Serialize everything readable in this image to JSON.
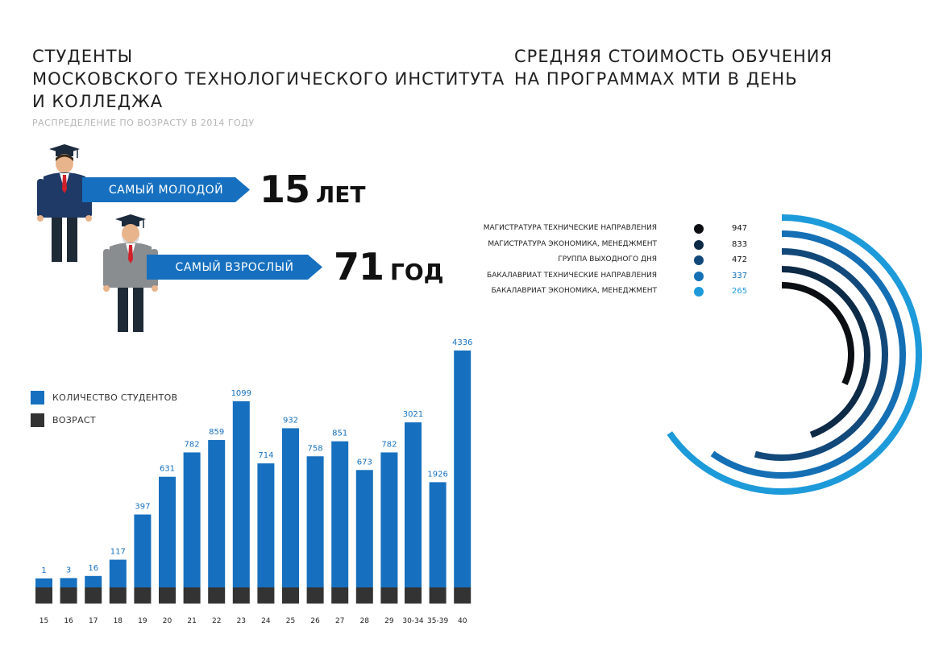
{
  "left": {
    "title_lines": [
      "СТУДЕНТЫ",
      "МОСКОВСКОГО ТЕХНОЛОГИЧЕСКОГО ИНСТИТУТА",
      "И КОЛЛЕДЖА"
    ],
    "subtitle": "РАСПРЕДЕЛЕНИЕ ПО ВОЗРАСТУ В 2014 ГОДУ",
    "youngest": {
      "label": "САМЫЙ МОЛОДОЙ",
      "number": "15",
      "unit": "ЛЕТ"
    },
    "oldest": {
      "label": "САМЫЙ ВЗРОСЛЫЙ",
      "number": "71",
      "unit": "ГОД"
    },
    "legend": [
      {
        "label": "КОЛИЧЕСТВО СТУДЕНТОВ",
        "color": "#1670bf"
      },
      {
        "label": "ВОЗРАСТ",
        "color": "#333333"
      }
    ]
  },
  "right": {
    "title_lines": [
      "СРЕДНЯЯ СТОИМОСТЬ ОБУЧЕНИЯ",
      "НА ПРОГРАММАХ МТИ В ДЕНЬ"
    ]
  },
  "chart_data": [
    {
      "type": "bar",
      "categories": [
        "15",
        "16",
        "17",
        "18",
        "19",
        "20",
        "21",
        "22",
        "23",
        "24",
        "25",
        "26",
        "27",
        "28",
        "29",
        "30-34",
        "35-39",
        "40"
      ],
      "tick_labels": [
        "15",
        "16",
        "17",
        "18",
        "19",
        "20",
        "21",
        "22",
        "23",
        "24",
        "25",
        "26",
        "27",
        "28",
        "29",
        "",
        "",
        "30-34",
        "35-39",
        "40"
      ],
      "series": [
        {
          "name": "КОЛИЧЕСТВО СТУДЕНТОВ",
          "values": [
            1,
            3,
            16,
            117,
            397,
            631,
            782,
            859,
            1099,
            714,
            932,
            758,
            851,
            673,
            782,
            3021,
            1926,
            4336
          ]
        }
      ],
      "value_labels": [
        "1",
        "3",
        "16",
        "117",
        "397",
        "631",
        "782",
        "859",
        "1099",
        "714",
        "932",
        "758",
        "851",
        "673",
        "782",
        "3021",
        "1926",
        "4336"
      ],
      "colors": {
        "bar": "#1670bf",
        "base": "#333333",
        "label": "#1670bf"
      }
    },
    {
      "type": "radial_bar",
      "series": [
        {
          "name": "МАГИСТРАТУРА  ТЕХНИЧЕСКИЕ НАПРАВЛЕНИЯ",
          "value": 947,
          "label": "947",
          "color": "#0b0f14"
        },
        {
          "name": "МАГИСТРАТУРА  ЭКОНОМИКА, МЕНЕДЖМЕНТ",
          "value": 833,
          "label": "833",
          "color": "#0d2a47"
        },
        {
          "name": "ГРУППА ВЫХОДНОГО ДНЯ",
          "value": 472,
          "label": "472",
          "color": "#12497a"
        },
        {
          "name": "БАКАЛАВРИАТ  ТЕХНИЧЕСКИЕ НАПРАВЛЕНИЯ",
          "value": 337,
          "label": "337",
          "color": "#146fb5"
        },
        {
          "name": "БАКАЛАВРИАТ  ЭКОНОМИКА, МЕНЕДЖМЕНТ",
          "value": 265,
          "label": "265",
          "color": "#1d9ad9"
        }
      ]
    }
  ]
}
